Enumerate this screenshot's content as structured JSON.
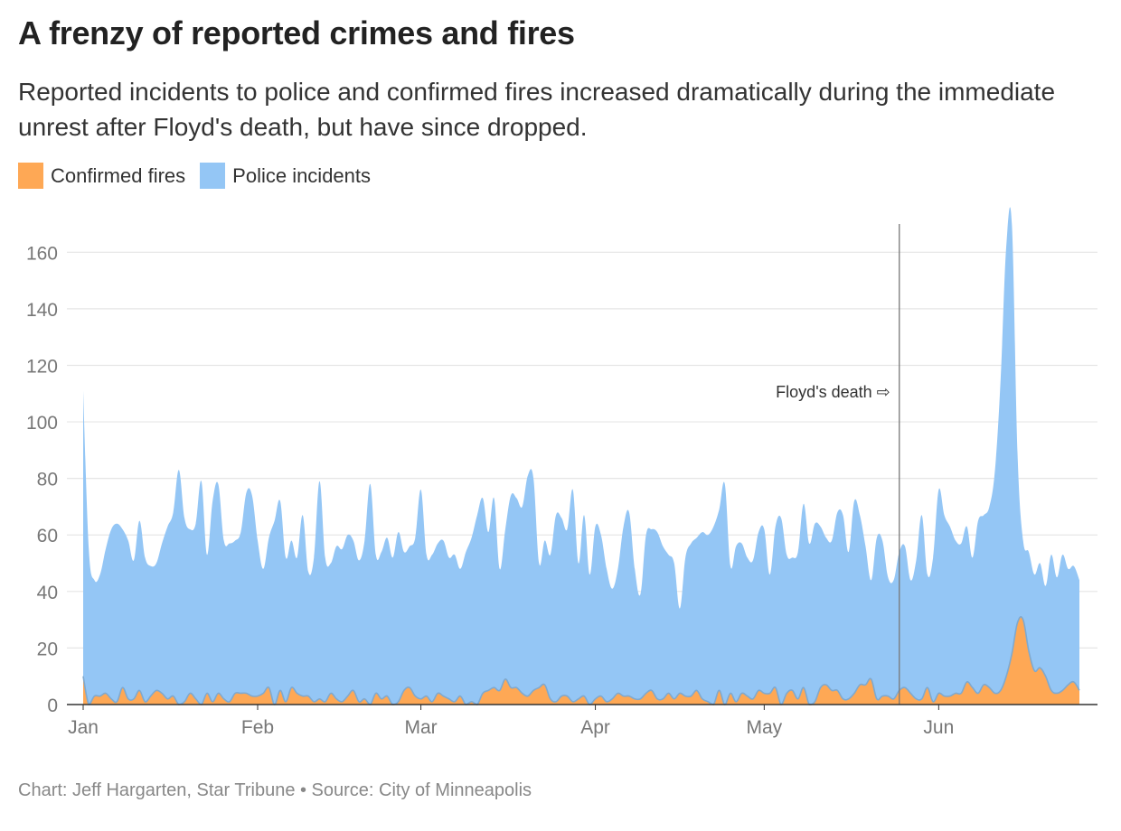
{
  "chart_data": {
    "type": "area",
    "title": "A frenzy of reported crimes and fires",
    "subtitle": "Reported incidents to police and confirmed fires increased dramatically during the immediate unrest after Floyd's death, but have since dropped.",
    "source": "Chart: Jeff Hargarten, Star Tribune • Source: City of Minneapolis",
    "xlabel": "",
    "ylabel": "",
    "ylim": [
      0,
      170
    ],
    "yticks": [
      0,
      20,
      40,
      60,
      80,
      100,
      120,
      140,
      160
    ],
    "grid": true,
    "legend_position": "top-left",
    "x_tick_labels": [
      {
        "date": "2020-01-01",
        "label": "Jan"
      },
      {
        "date": "2020-02-01",
        "label": "Feb"
      },
      {
        "date": "2020-03-01",
        "label": "Mar"
      },
      {
        "date": "2020-04-01",
        "label": "Apr"
      },
      {
        "date": "2020-05-01",
        "label": "May"
      },
      {
        "date": "2020-06-01",
        "label": "Jun"
      }
    ],
    "annotation": {
      "date": "2020-05-25",
      "label": "Floyd's death ⇨"
    },
    "x_start": "2020-01-01",
    "series": [
      {
        "name": "Police incidents",
        "color": "#94c6f5",
        "values": [
          111,
          55,
          44,
          46,
          55,
          62,
          64,
          62,
          58,
          51,
          65,
          52,
          49,
          50,
          57,
          63,
          68,
          83,
          66,
          62,
          64,
          79,
          53,
          72,
          78,
          58,
          57,
          58,
          61,
          75,
          74,
          58,
          48,
          59,
          65,
          72,
          52,
          58,
          52,
          67,
          47,
          52,
          79,
          52,
          50,
          56,
          55,
          60,
          58,
          51,
          58,
          78,
          53,
          54,
          59,
          52,
          61,
          54,
          56,
          59,
          76,
          53,
          53,
          57,
          58,
          52,
          53,
          48,
          54,
          59,
          67,
          73,
          61,
          73,
          48,
          62,
          74,
          73,
          70,
          81,
          80,
          50,
          58,
          53,
          67,
          66,
          62,
          76,
          50,
          67,
          46,
          63,
          60,
          48,
          41,
          48,
          63,
          68,
          48,
          39,
          60,
          62,
          61,
          56,
          53,
          50,
          34,
          52,
          57,
          59,
          61,
          60,
          63,
          69,
          78,
          49,
          56,
          57,
          52,
          51,
          61,
          62,
          46,
          63,
          66,
          53,
          52,
          54,
          71,
          57,
          64,
          63,
          59,
          58,
          68,
          67,
          54,
          72,
          67,
          56,
          44,
          59,
          58,
          45,
          44,
          54,
          56,
          44,
          51,
          67,
          46,
          52,
          76,
          67,
          63,
          58,
          57,
          63,
          52,
          65,
          67,
          70,
          83,
          115,
          162,
          170,
          89,
          58,
          54,
          46,
          50,
          42,
          53,
          45,
          53,
          48,
          49,
          44
        ]
      },
      {
        "name": "Confirmed fires",
        "color": "#fea855",
        "values": [
          10,
          0,
          3,
          3,
          4,
          2,
          1,
          6,
          2,
          2,
          5,
          1,
          3,
          5,
          4,
          2,
          3,
          0,
          1,
          4,
          2,
          0,
          4,
          1,
          4,
          2,
          1,
          4,
          4,
          4,
          3,
          3,
          4,
          6,
          0,
          5,
          1,
          6,
          4,
          3,
          3,
          1,
          2,
          1,
          4,
          2,
          1,
          3,
          5,
          1,
          2,
          0,
          4,
          2,
          3,
          0,
          1,
          5,
          6,
          3,
          2,
          3,
          1,
          4,
          3,
          2,
          1,
          3,
          0,
          1,
          0,
          4,
          5,
          6,
          5,
          9,
          6,
          6,
          4,
          3,
          5,
          6,
          7,
          2,
          1,
          3,
          3,
          1,
          2,
          3,
          0,
          2,
          3,
          1,
          2,
          4,
          3,
          3,
          2,
          2,
          4,
          5,
          2,
          2,
          4,
          2,
          4,
          3,
          3,
          5,
          2,
          1,
          0,
          5,
          0,
          4,
          1,
          4,
          3,
          2,
          5,
          4,
          4,
          6,
          0,
          4,
          5,
          2,
          6,
          0,
          1,
          6,
          7,
          5,
          5,
          2,
          2,
          4,
          7,
          7,
          9,
          2,
          3,
          3,
          2,
          5,
          6,
          4,
          2,
          2,
          6,
          1,
          4,
          3,
          3,
          4,
          4,
          8,
          6,
          4,
          7,
          6,
          4,
          5,
          10,
          18,
          29,
          30,
          19,
          12,
          13,
          10,
          5,
          4,
          5,
          7,
          8,
          5
        ]
      }
    ]
  }
}
